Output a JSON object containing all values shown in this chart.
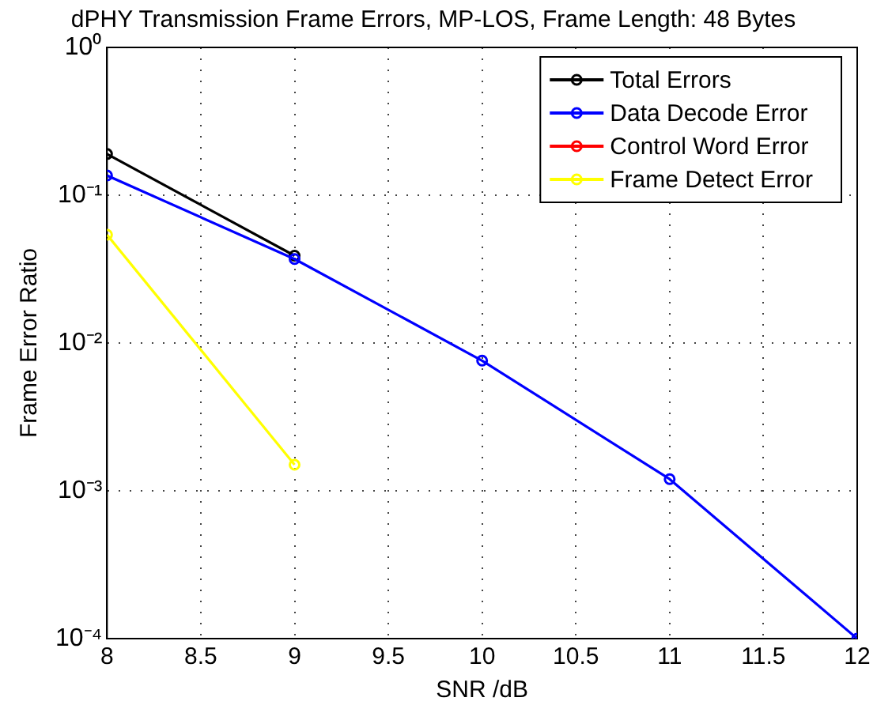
{
  "chart_data": {
    "type": "line",
    "title": "dPHY Transmission Frame Errors, MP-LOS, Frame Length: 48 Bytes",
    "xlabel": "SNR /dB",
    "ylabel": "Frame Error Ratio",
    "x": [
      8,
      9,
      10,
      11,
      12
    ],
    "series": [
      {
        "name": "Total Errors",
        "color": "#000000",
        "values": [
          0.19,
          0.039,
          null,
          null,
          null
        ]
      },
      {
        "name": "Data Decode Error",
        "color": "#0000ff",
        "values": [
          0.136,
          0.037,
          0.0076,
          0.0012,
          0.0001
        ]
      },
      {
        "name": "Control Word Error",
        "color": "#ff0000",
        "values": [
          null,
          null,
          null,
          null,
          null
        ]
      },
      {
        "name": "Frame Detect Error",
        "color": "#ffff00",
        "values": [
          0.054,
          0.0015,
          null,
          null,
          null
        ]
      }
    ],
    "log": "y",
    "xlim": [
      8,
      12
    ],
    "xticks": [
      8,
      8.5,
      9,
      9.5,
      10,
      10.5,
      11,
      11.5,
      12
    ],
    "ylim": [
      0.0001,
      1
    ],
    "yticks": [
      {
        "value": 0.0001,
        "label": "10⁻⁴"
      },
      {
        "value": 0.001,
        "label": "10⁻³"
      },
      {
        "value": 0.01,
        "label": "10⁻²"
      },
      {
        "value": 0.1,
        "label": "10⁻¹"
      },
      {
        "value": 1,
        "label": "10⁰"
      }
    ],
    "grid": true,
    "legend": "top right",
    "marker": "circle",
    "line_style": "solid"
  }
}
